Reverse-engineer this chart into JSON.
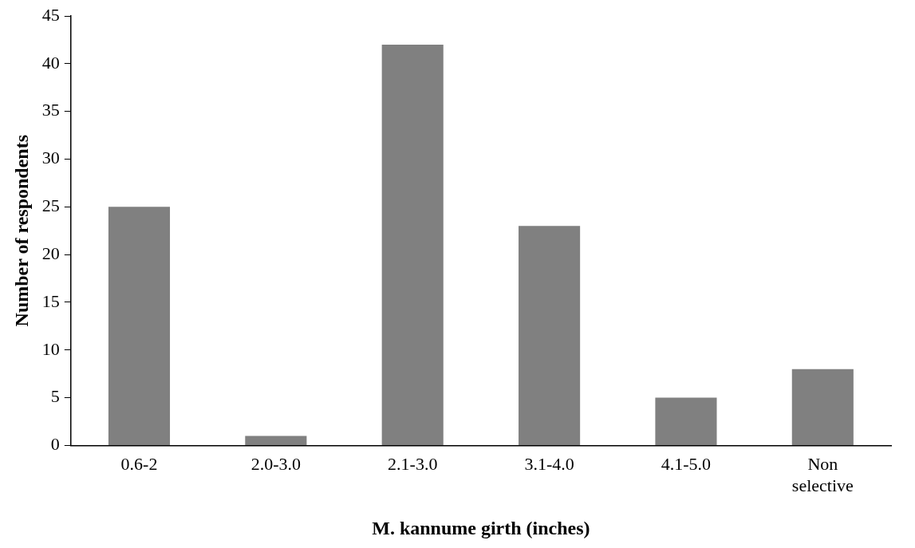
{
  "chart_data": {
    "type": "bar",
    "xlabel": "M. kannume girth (inches)",
    "ylabel": "Number of respondents",
    "categories": [
      "0.6-2",
      "2.0-3.0",
      "2.1-3.0",
      "3.1-4.0",
      "4.1-5.0",
      "Non selective"
    ],
    "values": [
      25,
      1,
      42,
      23,
      5,
      8
    ],
    "color": "#808080",
    "ylim": [
      0,
      45
    ],
    "yticks": [
      0,
      5,
      10,
      15,
      20,
      25,
      30,
      35,
      40,
      45
    ],
    "grid": false,
    "legend": false
  }
}
